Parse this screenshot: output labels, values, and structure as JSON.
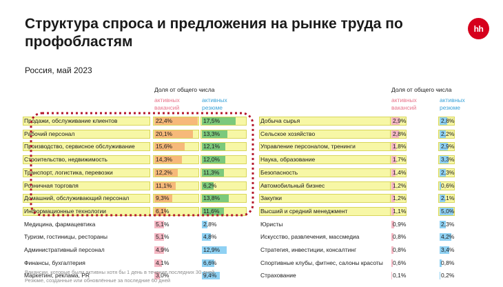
{
  "title": "Структура спроса и предложения на рынке труда по профобластям",
  "logo_text": "hh",
  "subtitle": "Россия, май 2023",
  "header_share": "Доля от общего числа",
  "col_vacancies": "активных вакансий",
  "col_resumes": "активных резюме",
  "footnote_1": "Вакансии, которые были активны хотя бы 1 день в течение последних 30 дней",
  "footnote_2": "Резюме, созданные или обновлённые за последние 60 дней",
  "colors": {
    "accent": "#d6001c",
    "vacancies": "#e8738a",
    "resumes": "#3ba3d8",
    "highlight": "#f7f7a6",
    "dashed": "#b3172b"
  },
  "chart_data": [
    {
      "type": "table",
      "categories": [
        "Продажи, обслуживание клиентов",
        "Рабочий персонал",
        "Производство, сервисное обслуживание",
        "Строительство, недвижимость",
        "Транспорт, логистика, перевозки",
        "Розничная торговля",
        "Домашний, обслуживающий персонал",
        "Информационные технологии",
        "Медицина, фармацевтика",
        "Туризм, гостиницы, рестораны",
        "Административный персонал",
        "Финансы, бухгалтерия",
        "Маркетинг, реклама, PR"
      ],
      "series": [
        {
          "name": "активных вакансий",
          "values": [
            22.4,
            20.1,
            15.6,
            14.3,
            12.2,
            11.1,
            9.3,
            6.1,
            5.1,
            5.1,
            4.9,
            4.1,
            3.0
          ],
          "labels": [
            "22,4%",
            "20,1%",
            "15,6%",
            "14,3%",
            "12,2%",
            "11,1%",
            "9,3%",
            "6,1%",
            "5,1%",
            "5,1%",
            "4,9%",
            "4,1%",
            "3,0%"
          ]
        },
        {
          "name": "активных резюме",
          "values": [
            17.5,
            13.3,
            12.1,
            12.0,
            11.3,
            6.2,
            13.8,
            11.6,
            2.8,
            4.8,
            12.9,
            6.6,
            9.4
          ],
          "labels": [
            "17,5%",
            "13,3%",
            "12,1%",
            "12,0%",
            "11,3%",
            "6,2%",
            "13,8%",
            "11,6%",
            "2,8%",
            "4,8%",
            "12,9%",
            "6,6%",
            "9,4%"
          ]
        }
      ],
      "highlighted_count": 8
    },
    {
      "type": "table",
      "categories": [
        "Добыча сырья",
        "Сельское хозяйство",
        "Управление персоналом, тренинги",
        "Наука, образование",
        "Безопасность",
        "Автомобильный бизнес",
        "Закупки",
        "Высший и средний менеджмент",
        "Юристы",
        "Искусство, развлечения, массмедиа",
        "Стратегия, инвестиции, консалтинг",
        "Спортивные клубы, фитнес, салоны красоты",
        "Страхование"
      ],
      "series": [
        {
          "name": "активных вакансий",
          "values": [
            2.9,
            2.8,
            1.8,
            1.7,
            1.4,
            1.2,
            1.2,
            1.1,
            0.9,
            0.8,
            0.8,
            0.6,
            0.1
          ],
          "labels": [
            "2,9%",
            "2,8%",
            "1,8%",
            "1,7%",
            "1,4%",
            "1,2%",
            "1,2%",
            "1,1%",
            "0,9%",
            "0,8%",
            "0,8%",
            "0,6%",
            "0,1%"
          ]
        },
        {
          "name": "активных резюме",
          "values": [
            2.8,
            2.2,
            2.9,
            3.3,
            2.3,
            0.6,
            2.1,
            5.0,
            2.3,
            4.2,
            3.4,
            0.8,
            0.2
          ],
          "labels": [
            "2,8%",
            "2,2%",
            "2,9%",
            "3,3%",
            "2,3%",
            "0,6%",
            "2,1%",
            "5,0%",
            "2,3%",
            "4,2%",
            "3,4%",
            "0,8%",
            "0,2%"
          ]
        }
      ],
      "highlighted_count": 8
    }
  ]
}
